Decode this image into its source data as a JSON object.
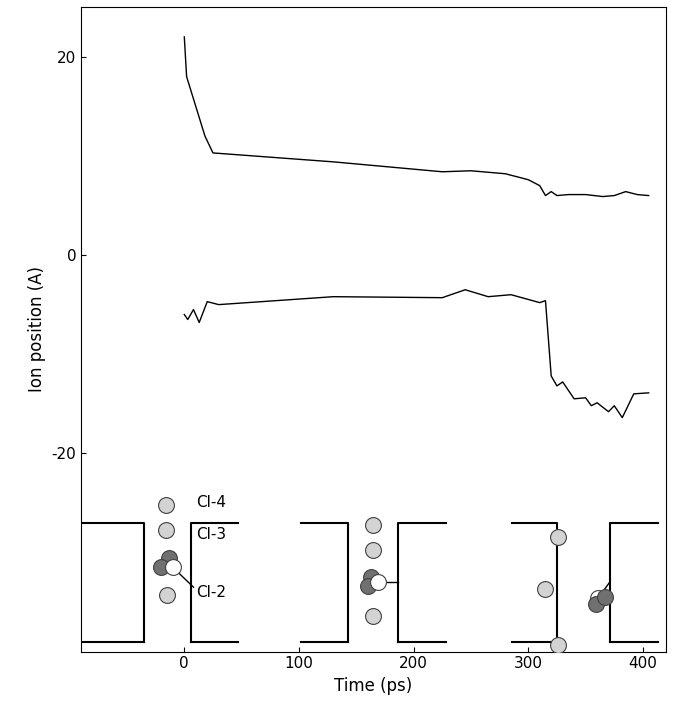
{
  "chart_data": {
    "type": "line",
    "x_label": "Time (ps)",
    "y_label": "Ion position (A)",
    "xlim": [
      -90,
      420
    ],
    "xticks": [
      0,
      100,
      200,
      300,
      400
    ],
    "ylim": [
      -40,
      25
    ],
    "yticks": [
      -20,
      0,
      20
    ],
    "grid": false,
    "annotations": [
      "Cl-4",
      "Cl-3",
      "Cl-2"
    ],
    "series": [
      {
        "color": "#000000",
        "x": [
          0,
          2,
          10,
          18,
          25,
          130,
          225,
          250,
          280,
          300,
          310,
          315,
          320,
          325,
          335,
          350,
          365,
          375,
          385,
          395,
          405
        ],
        "values": [
          22,
          18,
          15,
          12,
          10.3,
          9.4,
          8.4,
          8.5,
          8.2,
          7.6,
          7,
          6,
          6.4,
          6,
          6.1,
          6.1,
          5.9,
          6,
          6.4,
          6.1,
          6
        ]
      },
      {
        "color": "#000000",
        "x": [
          0,
          3,
          8,
          13,
          20,
          30,
          130,
          225,
          245,
          265,
          285,
          310,
          315,
          320,
          325,
          330,
          340,
          350,
          355,
          360,
          370,
          375,
          382,
          392,
          405
        ],
        "values": [
          -6,
          -6.5,
          -5.5,
          -6.8,
          -4.7,
          -5,
          -4.2,
          -4.3,
          -3.5,
          -4.2,
          -4,
          -4.8,
          -4.6,
          -12.2,
          -13.2,
          -12.8,
          -14.5,
          -14.4,
          -15.2,
          -14.9,
          -15.8,
          -15.2,
          -16.4,
          -14,
          -13.9
        ]
      }
    ]
  }
}
